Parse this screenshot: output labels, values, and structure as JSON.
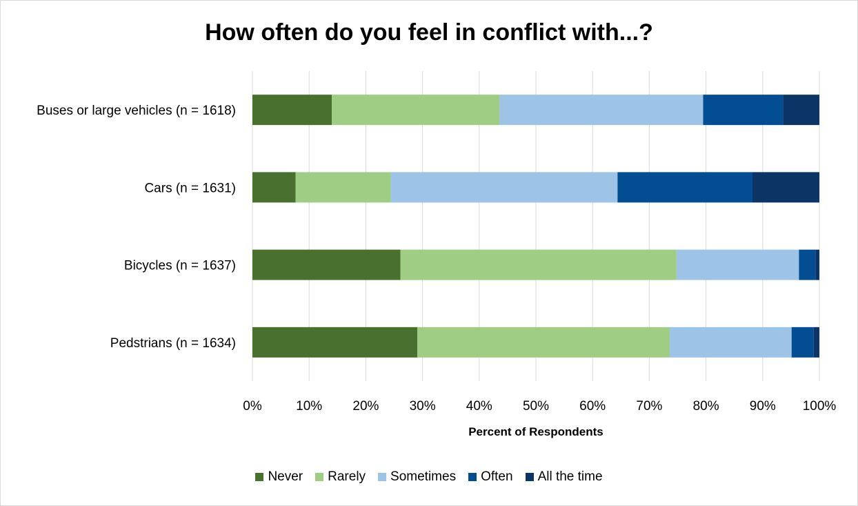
{
  "chart_data": {
    "type": "bar",
    "orientation": "horizontal",
    "stacked": true,
    "title": "How often do you feel in conflict with...?",
    "xlabel": "Percent of Respondents",
    "ylabel": "",
    "xlim": [
      0,
      100
    ],
    "x_ticks": [
      "0%",
      "10%",
      "20%",
      "30%",
      "40%",
      "50%",
      "60%",
      "70%",
      "80%",
      "90%",
      "100%"
    ],
    "grid": true,
    "legend_position": "bottom",
    "categories": [
      "Buses or large vehicles (n = 1618)",
      "Cars (n = 1631)",
      "Bicycles (n = 1637)",
      "Pedstrians (n = 1634)"
    ],
    "series": [
      {
        "name": "Never",
        "color": "#4a7030",
        "values": [
          14,
          7.6,
          26.1,
          29.1
        ]
      },
      {
        "name": "Rarely",
        "color": "#9fcd84",
        "values": [
          29.6,
          16.8,
          48.7,
          44.5
        ]
      },
      {
        "name": "Sometimes",
        "color": "#9dc3e6",
        "values": [
          35.9,
          40.0,
          21.6,
          21.5
        ]
      },
      {
        "name": "Often",
        "color": "#034d92",
        "values": [
          14.1,
          23.8,
          2.9,
          3.9
        ]
      },
      {
        "name": "All the time",
        "color": "#0c3566",
        "values": [
          6.4,
          11.8,
          0.7,
          1.0
        ]
      }
    ]
  }
}
